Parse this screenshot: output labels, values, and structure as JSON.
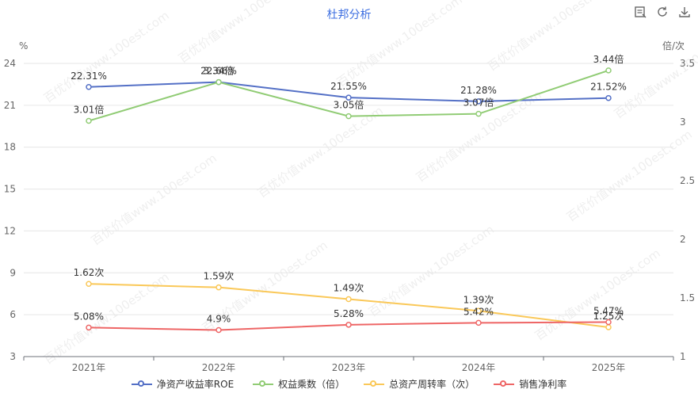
{
  "title": "杜邦分析",
  "watermark": "百优价值www.100est.com",
  "toolbar": {
    "icons": [
      "data-view-icon",
      "refresh-icon",
      "download-icon"
    ]
  },
  "chart_data": {
    "type": "line",
    "categories": [
      "2021年",
      "2022年",
      "2023年",
      "2024年",
      "2025年"
    ],
    "left_axis": {
      "label": "%",
      "min": 3,
      "max": 24,
      "ticks": [
        3,
        6,
        9,
        12,
        15,
        18,
        21,
        24
      ]
    },
    "right_axis": {
      "label": "倍/次",
      "min": 1,
      "max": 3.5,
      "ticks": [
        1,
        1.5,
        2,
        2.5,
        3,
        3.5
      ]
    },
    "grid": true,
    "legend_position": "bottom",
    "series": [
      {
        "name": "净资产收益率ROE",
        "axis": "left",
        "color": "#5470c6",
        "values": [
          22.31,
          22.66,
          21.55,
          21.28,
          21.52
        ],
        "labels": [
          "22.31%",
          "22.66%",
          "21.55%",
          "21.28%",
          "21.52%"
        ]
      },
      {
        "name": "权益乘数（倍）",
        "axis": "right",
        "color": "#91cc75",
        "values": [
          3.01,
          3.34,
          3.05,
          3.07,
          3.44
        ],
        "labels": [
          "3.01倍",
          "3.34倍",
          "3.05倍",
          "3.07倍",
          "3.44倍"
        ]
      },
      {
        "name": "总资产周转率（次）",
        "axis": "right",
        "color": "#fac858",
        "values": [
          1.62,
          1.59,
          1.49,
          1.39,
          1.25
        ],
        "labels": [
          "1.62次",
          "1.59次",
          "1.49次",
          "1.39次",
          "1.25次"
        ]
      },
      {
        "name": "销售净利率",
        "axis": "left",
        "color": "#ee6666",
        "values": [
          5.08,
          4.9,
          5.28,
          5.42,
          5.47
        ],
        "labels": [
          "5.08%",
          "4.9%",
          "5.28%",
          "5.42%",
          "5.47%"
        ]
      }
    ]
  }
}
